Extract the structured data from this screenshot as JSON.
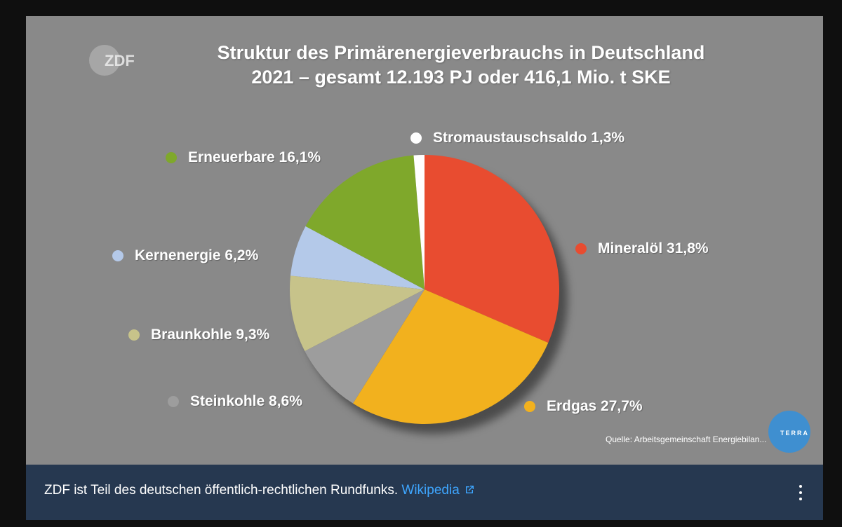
{
  "video": {
    "logo_text": "ZDF",
    "title_line1": "Struktur des Primärenergieverbrauchs in Deutschland",
    "title_line2": "2021 – gesamt 12.193 PJ oder 416,1 Mio. t SKE",
    "source": "Quelle: Arbeitsgemeinschaft Energiebilan...",
    "badge_text": "TERRA"
  },
  "chart_data": {
    "type": "pie",
    "title": "Struktur des Primärenergieverbrauchs in Deutschland 2021 – gesamt 12.193 PJ oder 416,1 Mio. t SKE",
    "start_angle_deg": 0,
    "direction": "clockwise",
    "slices": [
      {
        "label": "Mineralöl 31,8%",
        "value": 31.8,
        "color": "#e84c30"
      },
      {
        "label": "Erdgas 27,7%",
        "value": 27.7,
        "color": "#f2b11e"
      },
      {
        "label": "Steinkohle 8,6%",
        "value": 8.6,
        "color": "#9d9d9d"
      },
      {
        "label": "Braunkohle 9,3%",
        "value": 9.3,
        "color": "#c7c38a"
      },
      {
        "label": "Kernenergie 6,2%",
        "value": 6.2,
        "color": "#b4c9e9"
      },
      {
        "label": "Erneuerbare 16,1%",
        "value": 16.1,
        "color": "#7fa82b"
      },
      {
        "label": "Stromaustauschsaldo 1,3%",
        "value": 1.3,
        "color": "#ffffff"
      }
    ]
  },
  "info_panel": {
    "text": "ZDF ist Teil des deutschen öffentlich-rechtlichen Rundfunks.",
    "link": "Wikipedia"
  },
  "icons": [
    "external-link-icon",
    "more-vert-icon"
  ]
}
